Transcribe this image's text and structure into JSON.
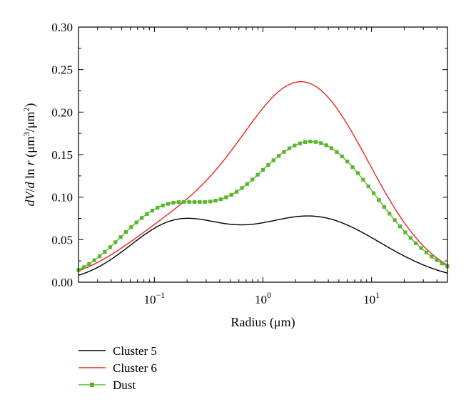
{
  "chart_data": {
    "type": "line",
    "xlabel": "Radius (μm)",
    "ylabel_parts": [
      "dV",
      "/",
      "d",
      " ln ",
      "r",
      " (μm",
      "3",
      "/μm",
      "2",
      ")"
    ],
    "xscale": "log",
    "xlim": [
      0.02,
      50
    ],
    "ylim": [
      0,
      0.3
    ],
    "x_ticks": [
      {
        "value": 0.1,
        "base": "10",
        "exp": "−1"
      },
      {
        "value": 1,
        "base": "10",
        "exp": "0"
      },
      {
        "value": 10,
        "base": "10",
        "exp": "1"
      }
    ],
    "y_ticks": [
      "0.00",
      "0.05",
      "0.10",
      "0.15",
      "0.20",
      "0.25",
      "0.30"
    ],
    "legend_position": "bottom-left, below plot",
    "grid": false,
    "series": [
      {
        "name": "Cluster 5",
        "color": "#000000",
        "marker": "none",
        "modes": [
          {
            "peak": 0.063,
            "center": 0.15,
            "width": 0.43
          },
          {
            "peak": 0.077,
            "center": 2.8,
            "width": 0.63
          }
        ]
      },
      {
        "name": "Cluster 6",
        "color": "#e8261c",
        "marker": "none",
        "modes": [
          {
            "peak": 0.053,
            "center": 0.14,
            "width": 0.5
          },
          {
            "peak": 0.233,
            "center": 2.35,
            "width": 0.6
          }
        ]
      },
      {
        "name": "Dust",
        "color": "#5ab52d",
        "marker": "square",
        "modes": [
          {
            "peak": 0.078,
            "center": 0.12,
            "width": 0.42
          },
          {
            "peak": 0.165,
            "center": 2.8,
            "width": 0.6
          }
        ]
      }
    ]
  }
}
